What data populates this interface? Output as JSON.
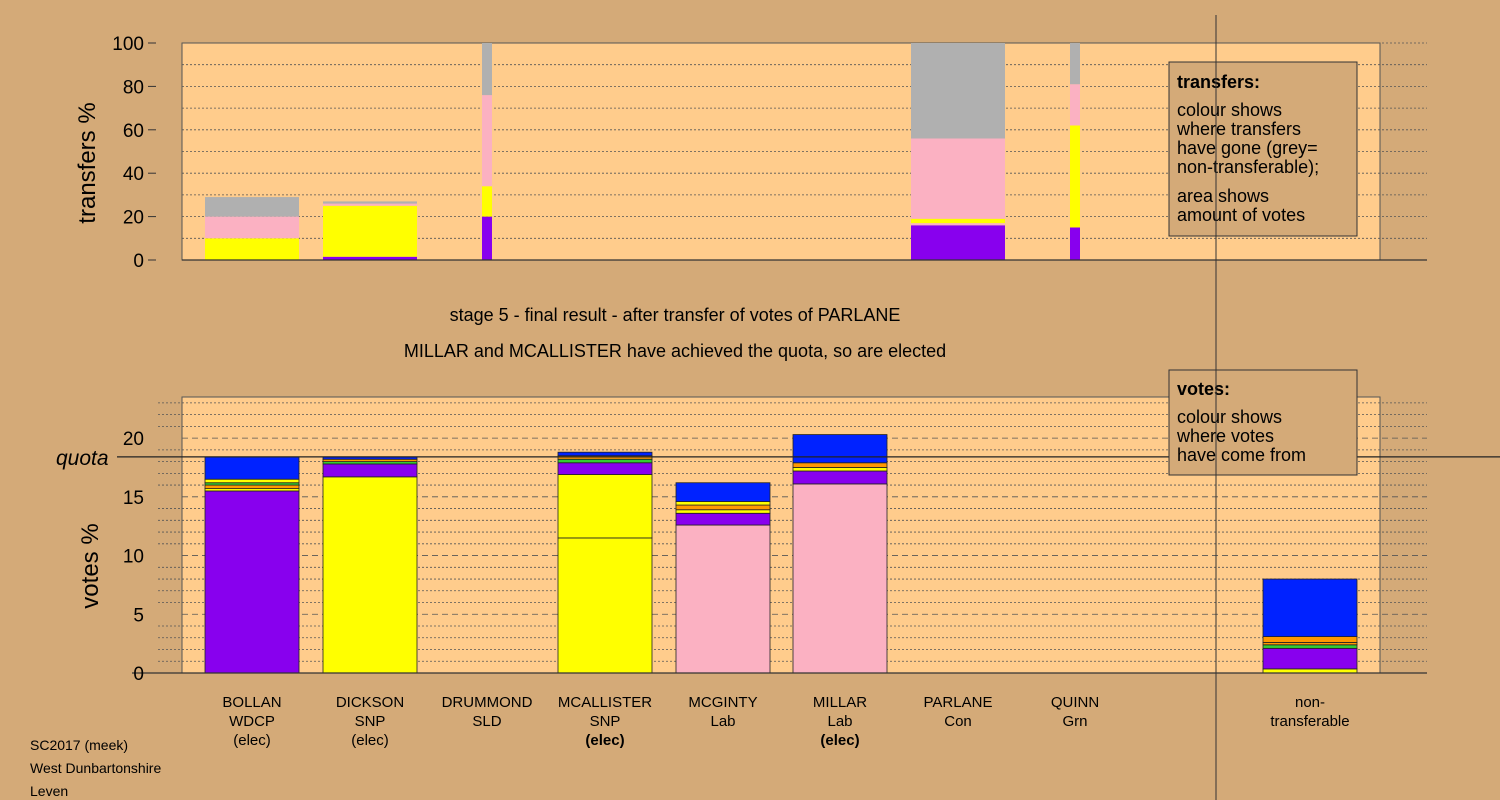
{
  "colors": {
    "background": "#d4aa78",
    "plot_bg": "#ffcc8c",
    "grey": "#b0b0b0",
    "pink": "#fbb1c2",
    "yellow": "#ffff00",
    "purple": "#8800ee",
    "blue": "#0022ff",
    "green": "#33cc33",
    "orange": "#ff9900",
    "legend_bg": "#d4aa78"
  },
  "footer": [
    "SC2017 (meek)",
    "West Dunbartonshire",
    "Leven"
  ],
  "stage_text": "stage 5 - final result - after transfer of votes of PARLANE",
  "elected_text": "MILLAR and MCALLISTER have achieved the quota, so are elected",
  "candidates": [
    {
      "name": "BOLLAN",
      "party": "WDCP",
      "status": "(elec)",
      "bold": false
    },
    {
      "name": "DICKSON",
      "party": "SNP",
      "status": "(elec)",
      "bold": false
    },
    {
      "name": "DRUMMOND",
      "party": "SLD",
      "status": "",
      "bold": false
    },
    {
      "name": "MCALLISTER",
      "party": "SNP",
      "status": "(elec)",
      "bold": true
    },
    {
      "name": "MCGINTY",
      "party": "Lab",
      "status": "",
      "bold": false
    },
    {
      "name": "MILLAR",
      "party": "Lab",
      "status": "(elec)",
      "bold": true
    },
    {
      "name": "PARLANE",
      "party": "Con",
      "status": "",
      "bold": false
    },
    {
      "name": "QUINN",
      "party": "Grn",
      "status": "",
      "bold": false
    }
  ],
  "nontransferable_label": [
    "non-",
    "transferable"
  ],
  "legends": {
    "transfers": {
      "title": "transfers:",
      "lines": [
        "colour shows",
        "where transfers",
        "have gone (grey=",
        "non-transferable);",
        "area shows",
        "amount of votes"
      ]
    },
    "votes": {
      "title": "votes:",
      "lines": [
        "colour shows",
        "where votes",
        "have come from"
      ]
    }
  },
  "chart_data": [
    {
      "type": "bar",
      "ylabel": "transfers %",
      "ylim": [
        0,
        100
      ],
      "yticks": [
        0,
        20,
        40,
        60,
        80,
        100
      ],
      "grid": true,
      "bars": [
        {
          "slot": 0,
          "width": "wide",
          "segments": [
            {
              "color": "yellow",
              "from": 0,
              "to": 10
            },
            {
              "color": "pink",
              "from": 10,
              "to": 20
            },
            {
              "color": "grey",
              "from": 20,
              "to": 29
            }
          ]
        },
        {
          "slot": 1,
          "width": "wide",
          "segments": [
            {
              "color": "purple",
              "from": 0,
              "to": 1.5
            },
            {
              "color": "yellow",
              "from": 1.5,
              "to": 25
            },
            {
              "color": "pink",
              "from": 25,
              "to": 26
            },
            {
              "color": "grey",
              "from": 26,
              "to": 27
            }
          ]
        },
        {
          "slot": 2,
          "width": "thin",
          "segments": [
            {
              "color": "purple",
              "from": 0,
              "to": 20
            },
            {
              "color": "yellow",
              "from": 20,
              "to": 34
            },
            {
              "color": "pink",
              "from": 34,
              "to": 76
            },
            {
              "color": "grey",
              "from": 76,
              "to": 100
            }
          ]
        },
        {
          "slot": 6,
          "width": "wide",
          "segments": [
            {
              "color": "purple",
              "from": 0,
              "to": 16
            },
            {
              "color": "pink",
              "from": 16,
              "to": 17
            },
            {
              "color": "yellow",
              "from": 17,
              "to": 19
            },
            {
              "color": "pink",
              "from": 19,
              "to": 56
            },
            {
              "color": "grey",
              "from": 56,
              "to": 100
            }
          ]
        },
        {
          "slot": 7,
          "width": "thin",
          "segments": [
            {
              "color": "purple",
              "from": 0,
              "to": 15
            },
            {
              "color": "yellow",
              "from": 15,
              "to": 62
            },
            {
              "color": "pink",
              "from": 62,
              "to": 81
            },
            {
              "color": "grey",
              "from": 81,
              "to": 100
            }
          ]
        }
      ]
    },
    {
      "type": "bar",
      "ylabel": "votes %",
      "ylim": [
        0,
        23.5
      ],
      "yticks": [
        0,
        5,
        10,
        15,
        20
      ],
      "quota": 18.4,
      "quota_label": "quota",
      "grid": true,
      "bars": [
        {
          "slot": 0,
          "segments": [
            {
              "color": "purple",
              "from": 0,
              "to": 15.5
            },
            {
              "color": "yellow",
              "from": 15.5,
              "to": 15.7
            },
            {
              "color": "orange",
              "from": 15.7,
              "to": 16.0
            },
            {
              "color": "green",
              "from": 16.0,
              "to": 16.2
            },
            {
              "color": "yellow",
              "from": 16.2,
              "to": 16.5
            },
            {
              "color": "blue",
              "from": 16.5,
              "to": 18.4
            }
          ]
        },
        {
          "slot": 1,
          "segments": [
            {
              "color": "yellow",
              "from": 0,
              "to": 16.7
            },
            {
              "color": "purple",
              "from": 16.7,
              "to": 17.8
            },
            {
              "color": "green",
              "from": 17.8,
              "to": 18.0
            },
            {
              "color": "orange",
              "from": 18.0,
              "to": 18.2
            },
            {
              "color": "blue",
              "from": 18.2,
              "to": 18.4
            }
          ]
        },
        {
          "slot": 3,
          "segments": [
            {
              "color": "yellow",
              "from": 0,
              "to": 11.5
            },
            {
              "color": "yellow",
              "from": 11.5,
              "to": 16.9
            },
            {
              "color": "purple",
              "from": 16.9,
              "to": 17.9
            },
            {
              "color": "green",
              "from": 17.9,
              "to": 18.2
            },
            {
              "color": "orange",
              "from": 18.2,
              "to": 18.5
            },
            {
              "color": "blue",
              "from": 18.5,
              "to": 18.8
            }
          ]
        },
        {
          "slot": 4,
          "segments": [
            {
              "color": "pink",
              "from": 0,
              "to": 12.6
            },
            {
              "color": "purple",
              "from": 12.6,
              "to": 13.6
            },
            {
              "color": "yellow",
              "from": 13.6,
              "to": 13.9
            },
            {
              "color": "orange",
              "from": 13.9,
              "to": 14.3
            },
            {
              "color": "yellow",
              "from": 14.3,
              "to": 14.6
            },
            {
              "color": "blue",
              "from": 14.6,
              "to": 16.2
            }
          ]
        },
        {
          "slot": 5,
          "segments": [
            {
              "color": "pink",
              "from": 0,
              "to": 16.1
            },
            {
              "color": "purple",
              "from": 16.1,
              "to": 17.2
            },
            {
              "color": "yellow",
              "from": 17.2,
              "to": 17.5
            },
            {
              "color": "orange",
              "from": 17.5,
              "to": 17.9
            },
            {
              "color": "blue",
              "from": 17.9,
              "to": 20.3
            }
          ]
        },
        {
          "slot": 9,
          "segments": [
            {
              "color": "yellow",
              "from": 0,
              "to": 0.35
            },
            {
              "color": "purple",
              "from": 0.35,
              "to": 2.1
            },
            {
              "color": "green",
              "from": 2.1,
              "to": 2.4
            },
            {
              "color": "orange",
              "from": 2.4,
              "to": 2.6
            },
            {
              "color": "orange",
              "from": 2.6,
              "to": 3.1
            },
            {
              "color": "blue",
              "from": 3.1,
              "to": 8.0
            }
          ]
        }
      ]
    }
  ]
}
